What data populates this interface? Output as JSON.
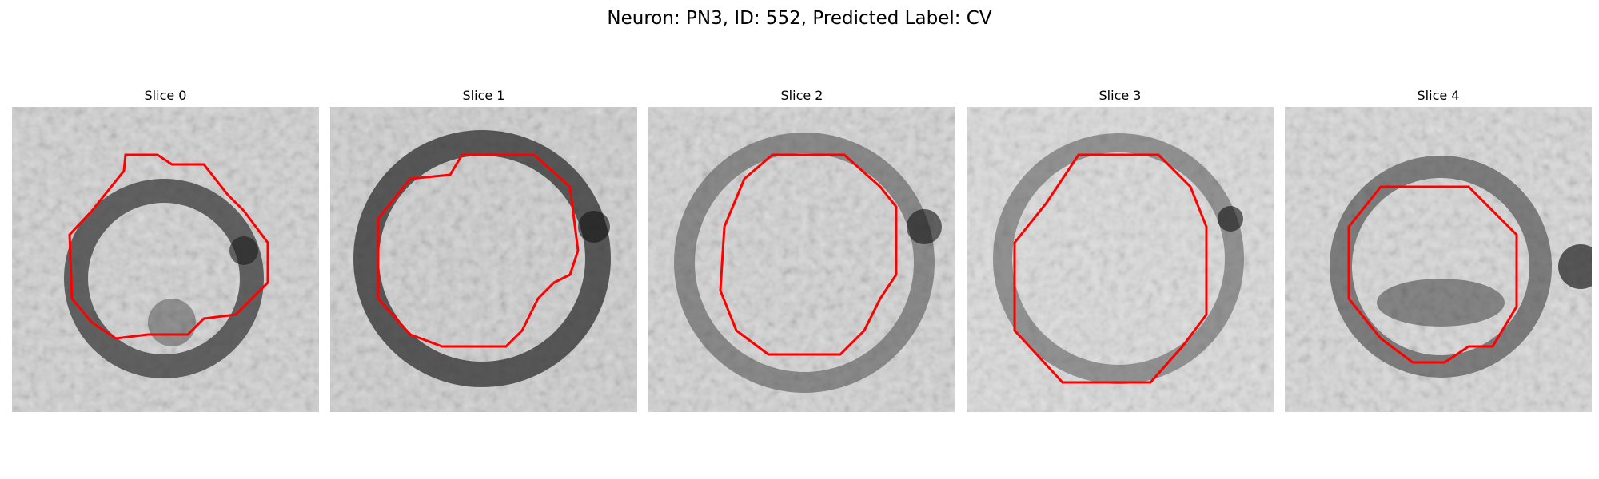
{
  "figure": {
    "title": "Neuron: PN3, ID: 552, Predicted Label: CV"
  },
  "panels": [
    {
      "title": "Slice 0"
    },
    {
      "title": "Slice 1"
    },
    {
      "title": "Slice 2"
    },
    {
      "title": "Slice 3"
    },
    {
      "title": "Slice 4"
    }
  ],
  "colors": {
    "contour": "#ff0000",
    "image_colormap": "grayscale"
  }
}
